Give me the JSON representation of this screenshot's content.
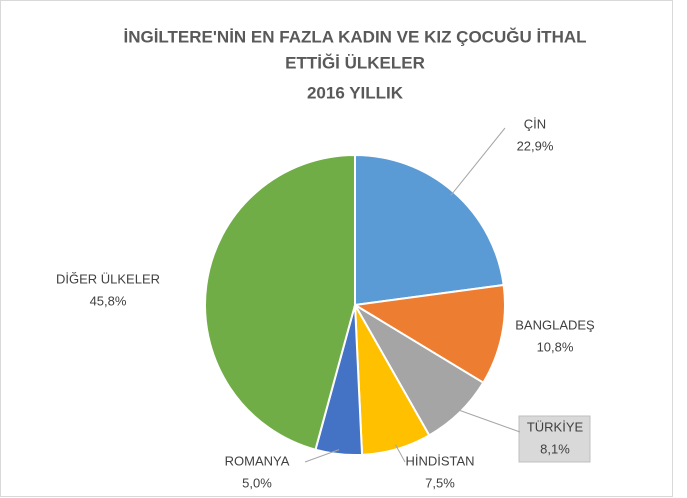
{
  "chart_data": {
    "type": "pie",
    "title": [
      "İNGİLTERE'NİN EN FAZLA KADIN VE KIZ ÇOCUĞU İTHAL",
      "ETTİĞİ ÜLKELER"
    ],
    "subtitle": "2016 YILLIK",
    "categories": [
      "ÇİN",
      "BANGLADEŞ",
      "TÜRKİYE",
      "HİNDİSTAN",
      "ROMANYA",
      "DİĞER ÜLKELER"
    ],
    "values": [
      22.9,
      10.8,
      8.1,
      7.5,
      5.0,
      45.8
    ],
    "value_labels": [
      "22,9%",
      "10,8%",
      "8,1%",
      "7,5%",
      "5,0%",
      "45,8%"
    ],
    "colors": [
      "#5b9bd5",
      "#ed7d31",
      "#a5a5a5",
      "#ffc000",
      "#4472c4",
      "#70ad47"
    ]
  }
}
